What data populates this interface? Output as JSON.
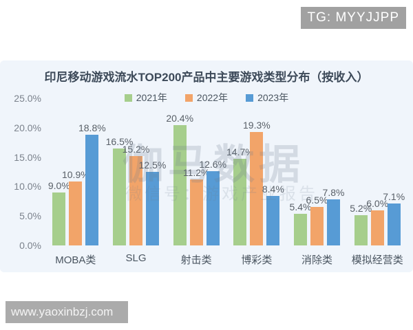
{
  "overlays": {
    "tg_badge": "TG: MYYJJPP",
    "site_badge": "www.yaoxinbzj.com"
  },
  "watermark": {
    "line1": "伽马数据",
    "line2": "微信号：游戏产业报告"
  },
  "colors": {
    "panel_background": "#f0f5fb",
    "series_2021": "#a6ce8c",
    "series_2022": "#f2a469",
    "series_2023": "#579bd5",
    "title_text": "#3d4a59",
    "badge_gray": "#a1a1a1"
  },
  "chart_data": {
    "type": "bar",
    "title": "印尼移动游戏流水TOP200产品中主要游戏类型分布（按收入）",
    "categories": [
      "MOBA类",
      "SLG",
      "射击类",
      "博彩类",
      "消除类",
      "模拟经营类"
    ],
    "series": [
      {
        "name": "2021年",
        "color": "#a6ce8c",
        "values": [
          9.0,
          16.5,
          20.4,
          14.7,
          5.4,
          5.2
        ]
      },
      {
        "name": "2022年",
        "color": "#f2a469",
        "values": [
          10.9,
          15.2,
          11.2,
          19.3,
          6.5,
          6.0
        ]
      },
      {
        "name": "2023年",
        "color": "#579bd5",
        "values": [
          18.8,
          12.5,
          12.6,
          8.4,
          7.8,
          7.1
        ]
      }
    ],
    "y_ticks": [
      "25.0%",
      "20.0%",
      "15.0%",
      "10.0%",
      "5.0%",
      "0.0%"
    ],
    "ylim": [
      0,
      25
    ],
    "value_label_format": "{value}%",
    "legend_position": "top-center",
    "grid": false,
    "xlabel": "",
    "ylabel": ""
  }
}
